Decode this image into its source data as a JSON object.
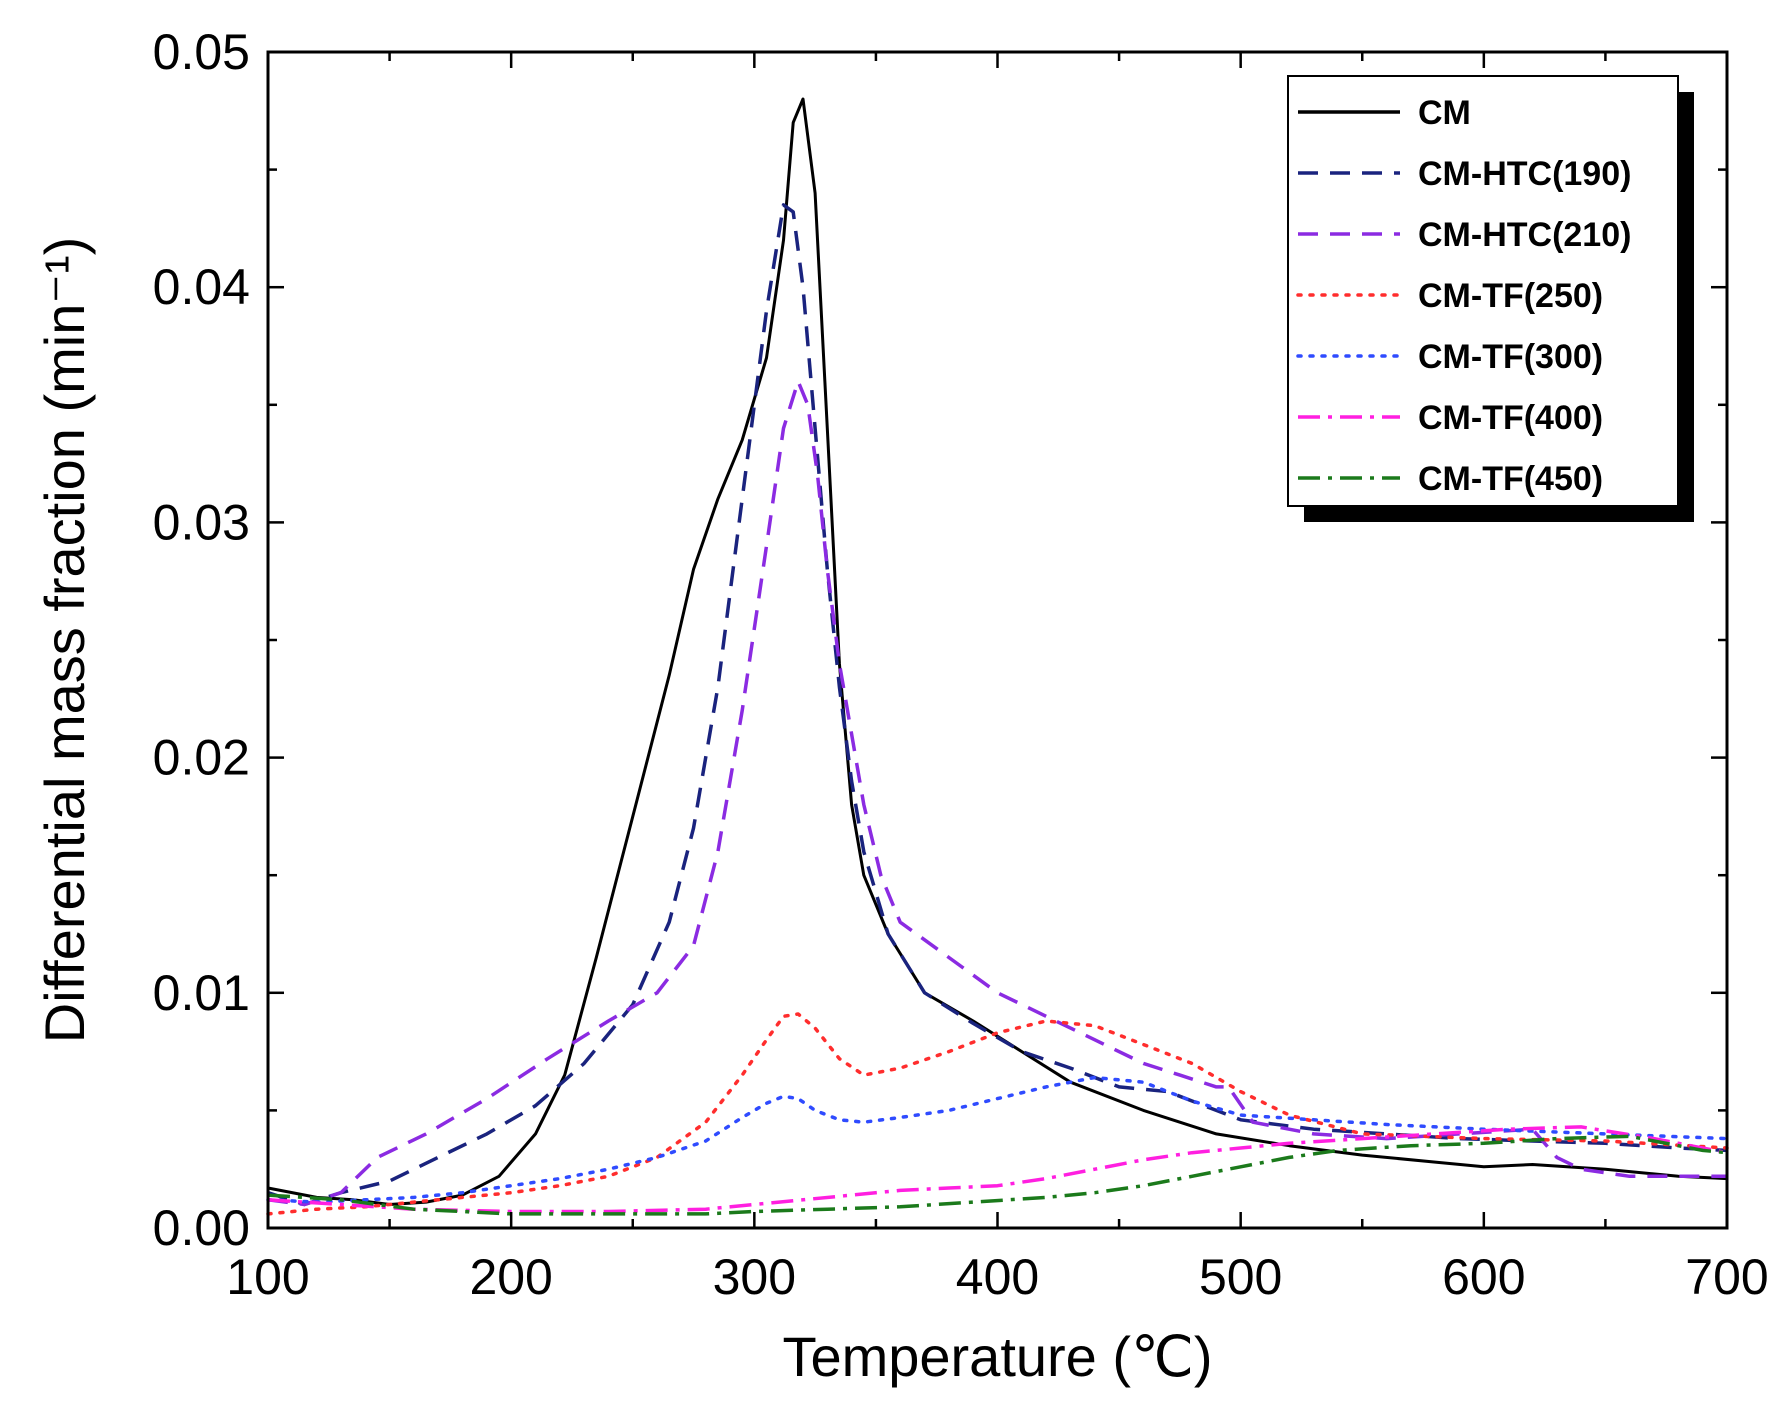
{
  "chart_data": {
    "type": "line",
    "title": "",
    "xlabel": "Temperature (℃)",
    "ylabel": "Differential mass fraction (min⁻¹)",
    "xlim": [
      100,
      700
    ],
    "ylim": [
      0,
      0.05
    ],
    "xticks": [
      100,
      200,
      300,
      400,
      500,
      600,
      700
    ],
    "xtick_labels": [
      "100",
      "200",
      "300",
      "400",
      "500",
      "600",
      "700"
    ],
    "yticks": [
      0,
      0.01,
      0.02,
      0.03,
      0.04,
      0.05
    ],
    "ytick_labels": [
      "0.00",
      "0.01",
      "0.02",
      "0.03",
      "0.04",
      "0.05"
    ],
    "grid": false,
    "legend_position": "top-right",
    "series": [
      {
        "name": "CM",
        "color": "#000000",
        "dash": "solid",
        "x": [
          100,
          120,
          135,
          150,
          165,
          180,
          195,
          210,
          222,
          235,
          250,
          265,
          275,
          285,
          295,
          305,
          312,
          316,
          320,
          325,
          330,
          335,
          340,
          345,
          355,
          370,
          390,
          410,
          430,
          460,
          490,
          520,
          550,
          580,
          600,
          620,
          650,
          680,
          700
        ],
        "y": [
          0.0017,
          0.0013,
          0.0012,
          0.001,
          0.0011,
          0.0014,
          0.0022,
          0.004,
          0.0065,
          0.0115,
          0.0175,
          0.0235,
          0.028,
          0.031,
          0.0335,
          0.037,
          0.042,
          0.047,
          0.048,
          0.044,
          0.034,
          0.024,
          0.018,
          0.015,
          0.0125,
          0.01,
          0.0088,
          0.0075,
          0.0062,
          0.005,
          0.004,
          0.0035,
          0.0031,
          0.0028,
          0.0026,
          0.0027,
          0.0025,
          0.0022,
          0.0021
        ]
      },
      {
        "name": "CM-HTC(190)",
        "color": "#1a237e",
        "dash": "long-dash",
        "x": [
          100,
          115,
          130,
          150,
          170,
          190,
          210,
          230,
          250,
          265,
          275,
          285,
          295,
          305,
          312,
          316,
          320,
          325,
          330,
          335,
          340,
          345,
          355,
          370,
          390,
          410,
          430,
          450,
          470,
          485,
          500,
          530,
          560,
          590,
          620,
          650,
          680,
          700
        ],
        "y": [
          0.0015,
          0.001,
          0.0015,
          0.002,
          0.003,
          0.004,
          0.0052,
          0.007,
          0.0095,
          0.013,
          0.017,
          0.023,
          0.031,
          0.039,
          0.0435,
          0.0432,
          0.04,
          0.034,
          0.028,
          0.023,
          0.019,
          0.016,
          0.0125,
          0.01,
          0.0087,
          0.0075,
          0.0068,
          0.006,
          0.0058,
          0.0052,
          0.0046,
          0.0042,
          0.004,
          0.0038,
          0.0037,
          0.0036,
          0.0034,
          0.0033
        ]
      },
      {
        "name": "CM-HTC(210)",
        "color": "#8b2be2",
        "dash": "long-dash",
        "x": [
          100,
          115,
          130,
          145,
          165,
          190,
          215,
          240,
          260,
          275,
          285,
          295,
          305,
          312,
          318,
          322,
          326,
          330,
          335,
          340,
          345,
          352,
          360,
          380,
          400,
          420,
          440,
          460,
          475,
          490,
          495,
          505,
          530,
          560,
          590,
          620,
          630,
          640,
          660,
          680,
          700
        ],
        "y": [
          0.0012,
          0.001,
          0.0015,
          0.003,
          0.004,
          0.0055,
          0.0072,
          0.0088,
          0.01,
          0.012,
          0.016,
          0.022,
          0.029,
          0.034,
          0.036,
          0.035,
          0.032,
          0.028,
          0.024,
          0.021,
          0.018,
          0.015,
          0.013,
          0.0115,
          0.01,
          0.009,
          0.008,
          0.007,
          0.0065,
          0.006,
          0.006,
          0.0045,
          0.004,
          0.0038,
          0.004,
          0.0042,
          0.003,
          0.0025,
          0.0022,
          0.0022,
          0.0022
        ]
      },
      {
        "name": "CM-TF(250)",
        "color": "#ff2d2d",
        "dash": "dot",
        "x": [
          100,
          120,
          140,
          160,
          180,
          200,
          220,
          240,
          260,
          280,
          295,
          305,
          312,
          318,
          325,
          335,
          345,
          360,
          380,
          400,
          420,
          440,
          460,
          480,
          500,
          520,
          550,
          600,
          650,
          700
        ],
        "y": [
          0.0006,
          0.0008,
          0.0009,
          0.0011,
          0.0013,
          0.0015,
          0.0018,
          0.0022,
          0.003,
          0.0045,
          0.0065,
          0.008,
          0.009,
          0.0091,
          0.0085,
          0.0072,
          0.0065,
          0.0068,
          0.0075,
          0.0083,
          0.0088,
          0.0086,
          0.0078,
          0.007,
          0.0058,
          0.0048,
          0.004,
          0.0038,
          0.0037,
          0.0034
        ]
      },
      {
        "name": "CM-TF(300)",
        "color": "#2f4bff",
        "dash": "dot",
        "x": [
          100,
          120,
          140,
          160,
          180,
          200,
          220,
          240,
          260,
          280,
          295,
          305,
          312,
          318,
          325,
          335,
          345,
          360,
          380,
          400,
          420,
          440,
          460,
          480,
          500,
          530,
          560,
          600,
          650,
          700
        ],
        "y": [
          0.0012,
          0.0011,
          0.0012,
          0.0013,
          0.0015,
          0.0018,
          0.0021,
          0.0025,
          0.003,
          0.0037,
          0.0047,
          0.0053,
          0.0056,
          0.0055,
          0.005,
          0.0046,
          0.0045,
          0.0047,
          0.005,
          0.0055,
          0.006,
          0.0064,
          0.0062,
          0.0054,
          0.0048,
          0.0046,
          0.0044,
          0.0042,
          0.004,
          0.0038
        ]
      },
      {
        "name": "CM-TF(400)",
        "color": "#ff1fe0",
        "dash": "dash-dot",
        "x": [
          100,
          130,
          160,
          200,
          240,
          280,
          300,
          320,
          340,
          360,
          380,
          400,
          420,
          440,
          460,
          480,
          500,
          520,
          550,
          580,
          610,
          640,
          670,
          700
        ],
        "y": [
          0.0012,
          0.001,
          0.0008,
          0.0007,
          0.0007,
          0.0008,
          0.001,
          0.0012,
          0.0014,
          0.0016,
          0.0017,
          0.0018,
          0.0021,
          0.0025,
          0.0029,
          0.0032,
          0.0034,
          0.0036,
          0.0038,
          0.004,
          0.0042,
          0.0043,
          0.0038,
          0.0032
        ]
      },
      {
        "name": "CM-TF(450)",
        "color": "#1b7a1b",
        "dash": "dash-dot",
        "x": [
          100,
          130,
          160,
          200,
          240,
          280,
          300,
          330,
          360,
          390,
          420,
          440,
          460,
          480,
          500,
          520,
          540,
          570,
          600,
          630,
          660,
          690,
          700
        ],
        "y": [
          0.0014,
          0.0012,
          0.0008,
          0.0006,
          0.0006,
          0.0006,
          0.0007,
          0.0008,
          0.0009,
          0.0011,
          0.0013,
          0.0015,
          0.0018,
          0.0022,
          0.0026,
          0.003,
          0.0033,
          0.0035,
          0.0036,
          0.0038,
          0.0039,
          0.0033,
          0.0032
        ]
      }
    ]
  }
}
